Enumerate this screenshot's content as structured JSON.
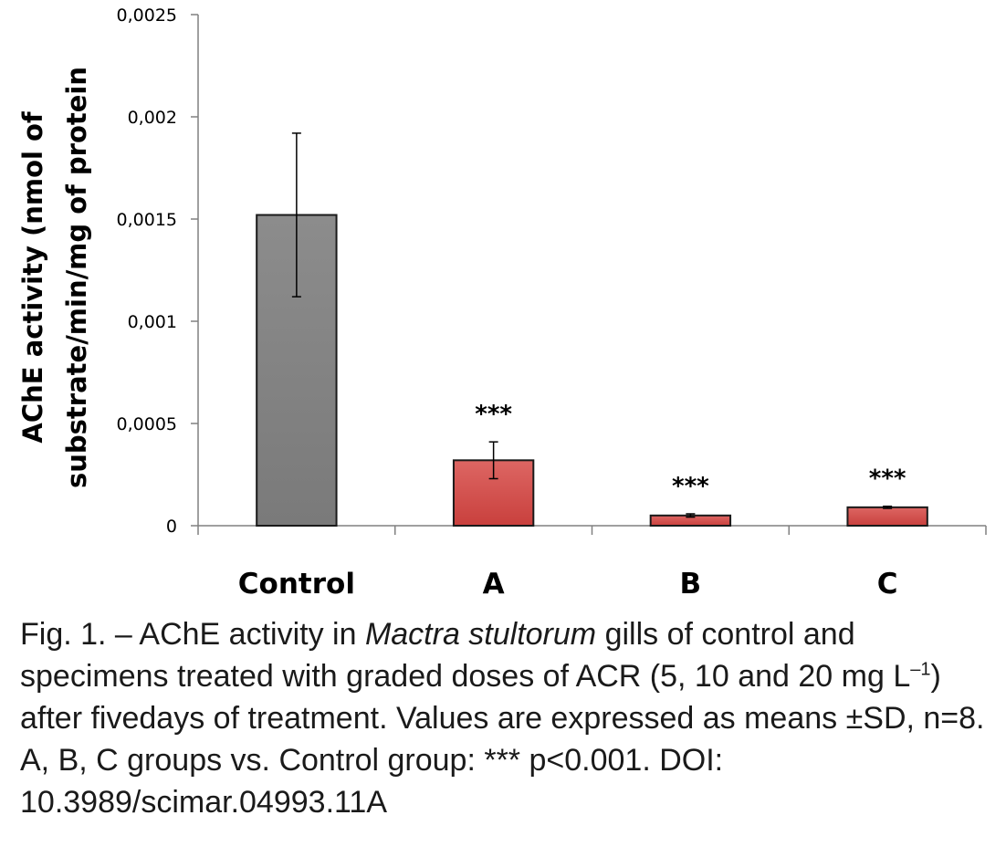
{
  "chart_data": {
    "type": "bar",
    "categories": [
      "Control",
      "A",
      "B",
      "C"
    ],
    "values": [
      0.00152,
      0.00032,
      5e-05,
      9e-05
    ],
    "errors": [
      0.0004,
      9e-05,
      8e-06,
      5e-06
    ],
    "significance": [
      "",
      "***",
      "***",
      "***"
    ],
    "bar_colors": [
      "#7f7f7f",
      "#d9534f",
      "#d9534f",
      "#d9534f"
    ],
    "ylabel_lines": [
      "AChE activity (nmol of",
      "substrate/min/mg of protein"
    ],
    "xlabel": "",
    "ylim": [
      0,
      0.0025
    ],
    "yticks": [
      0,
      0.0005,
      0.001,
      0.0015,
      0.002,
      0.0025
    ],
    "ytick_labels": [
      "0",
      "0,0005",
      "0,001",
      "0,0015",
      "0,002",
      "0,0025"
    ],
    "grid": false,
    "legend": "none"
  },
  "caption": {
    "prefix": "Fig. 1. – AChE activity in ",
    "species": "Mactra stultorum",
    "middle": " gills of control and specimens treated with graded doses of ACR (5, 10 and 20 mg L",
    "superscript": "–1",
    "suffix": ") after fivedays of treatment. Values are expressed as means ±SD, n=8. A, B, C groups vs. Control group: *** p<0.001. DOI: 10.3989/scimar.04993.11A"
  }
}
